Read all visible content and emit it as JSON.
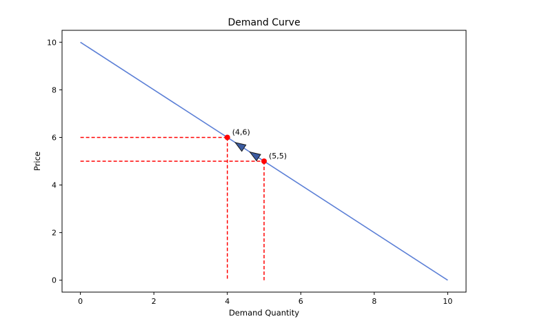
{
  "chart_data": {
    "type": "line",
    "title": "Demand Curve",
    "xlabel": "Demand Quantity",
    "ylabel": "Price",
    "xlim": [
      -0.5,
      10.5
    ],
    "ylim": [
      -0.5,
      10.5
    ],
    "xticks": [
      0,
      2,
      4,
      6,
      8,
      10
    ],
    "yticks": [
      0,
      2,
      4,
      6,
      8,
      10
    ],
    "grid": false,
    "series": [
      {
        "x": [
          0,
          10
        ],
        "y": [
          10,
          0
        ],
        "color": "#5b7fd6"
      }
    ],
    "points": [
      {
        "x": 4,
        "y": 6,
        "label": "(4,6)"
      },
      {
        "x": 5,
        "y": 5,
        "label": "(5,5)"
      }
    ],
    "arrows": [
      {
        "from": [
          5,
          5
        ],
        "to": [
          4,
          6
        ]
      }
    ],
    "colors": {
      "line": "#5b7fd6",
      "guides": "#ff0000",
      "points": "#ff0000",
      "arrow_fill": "#3b5ba0"
    }
  }
}
